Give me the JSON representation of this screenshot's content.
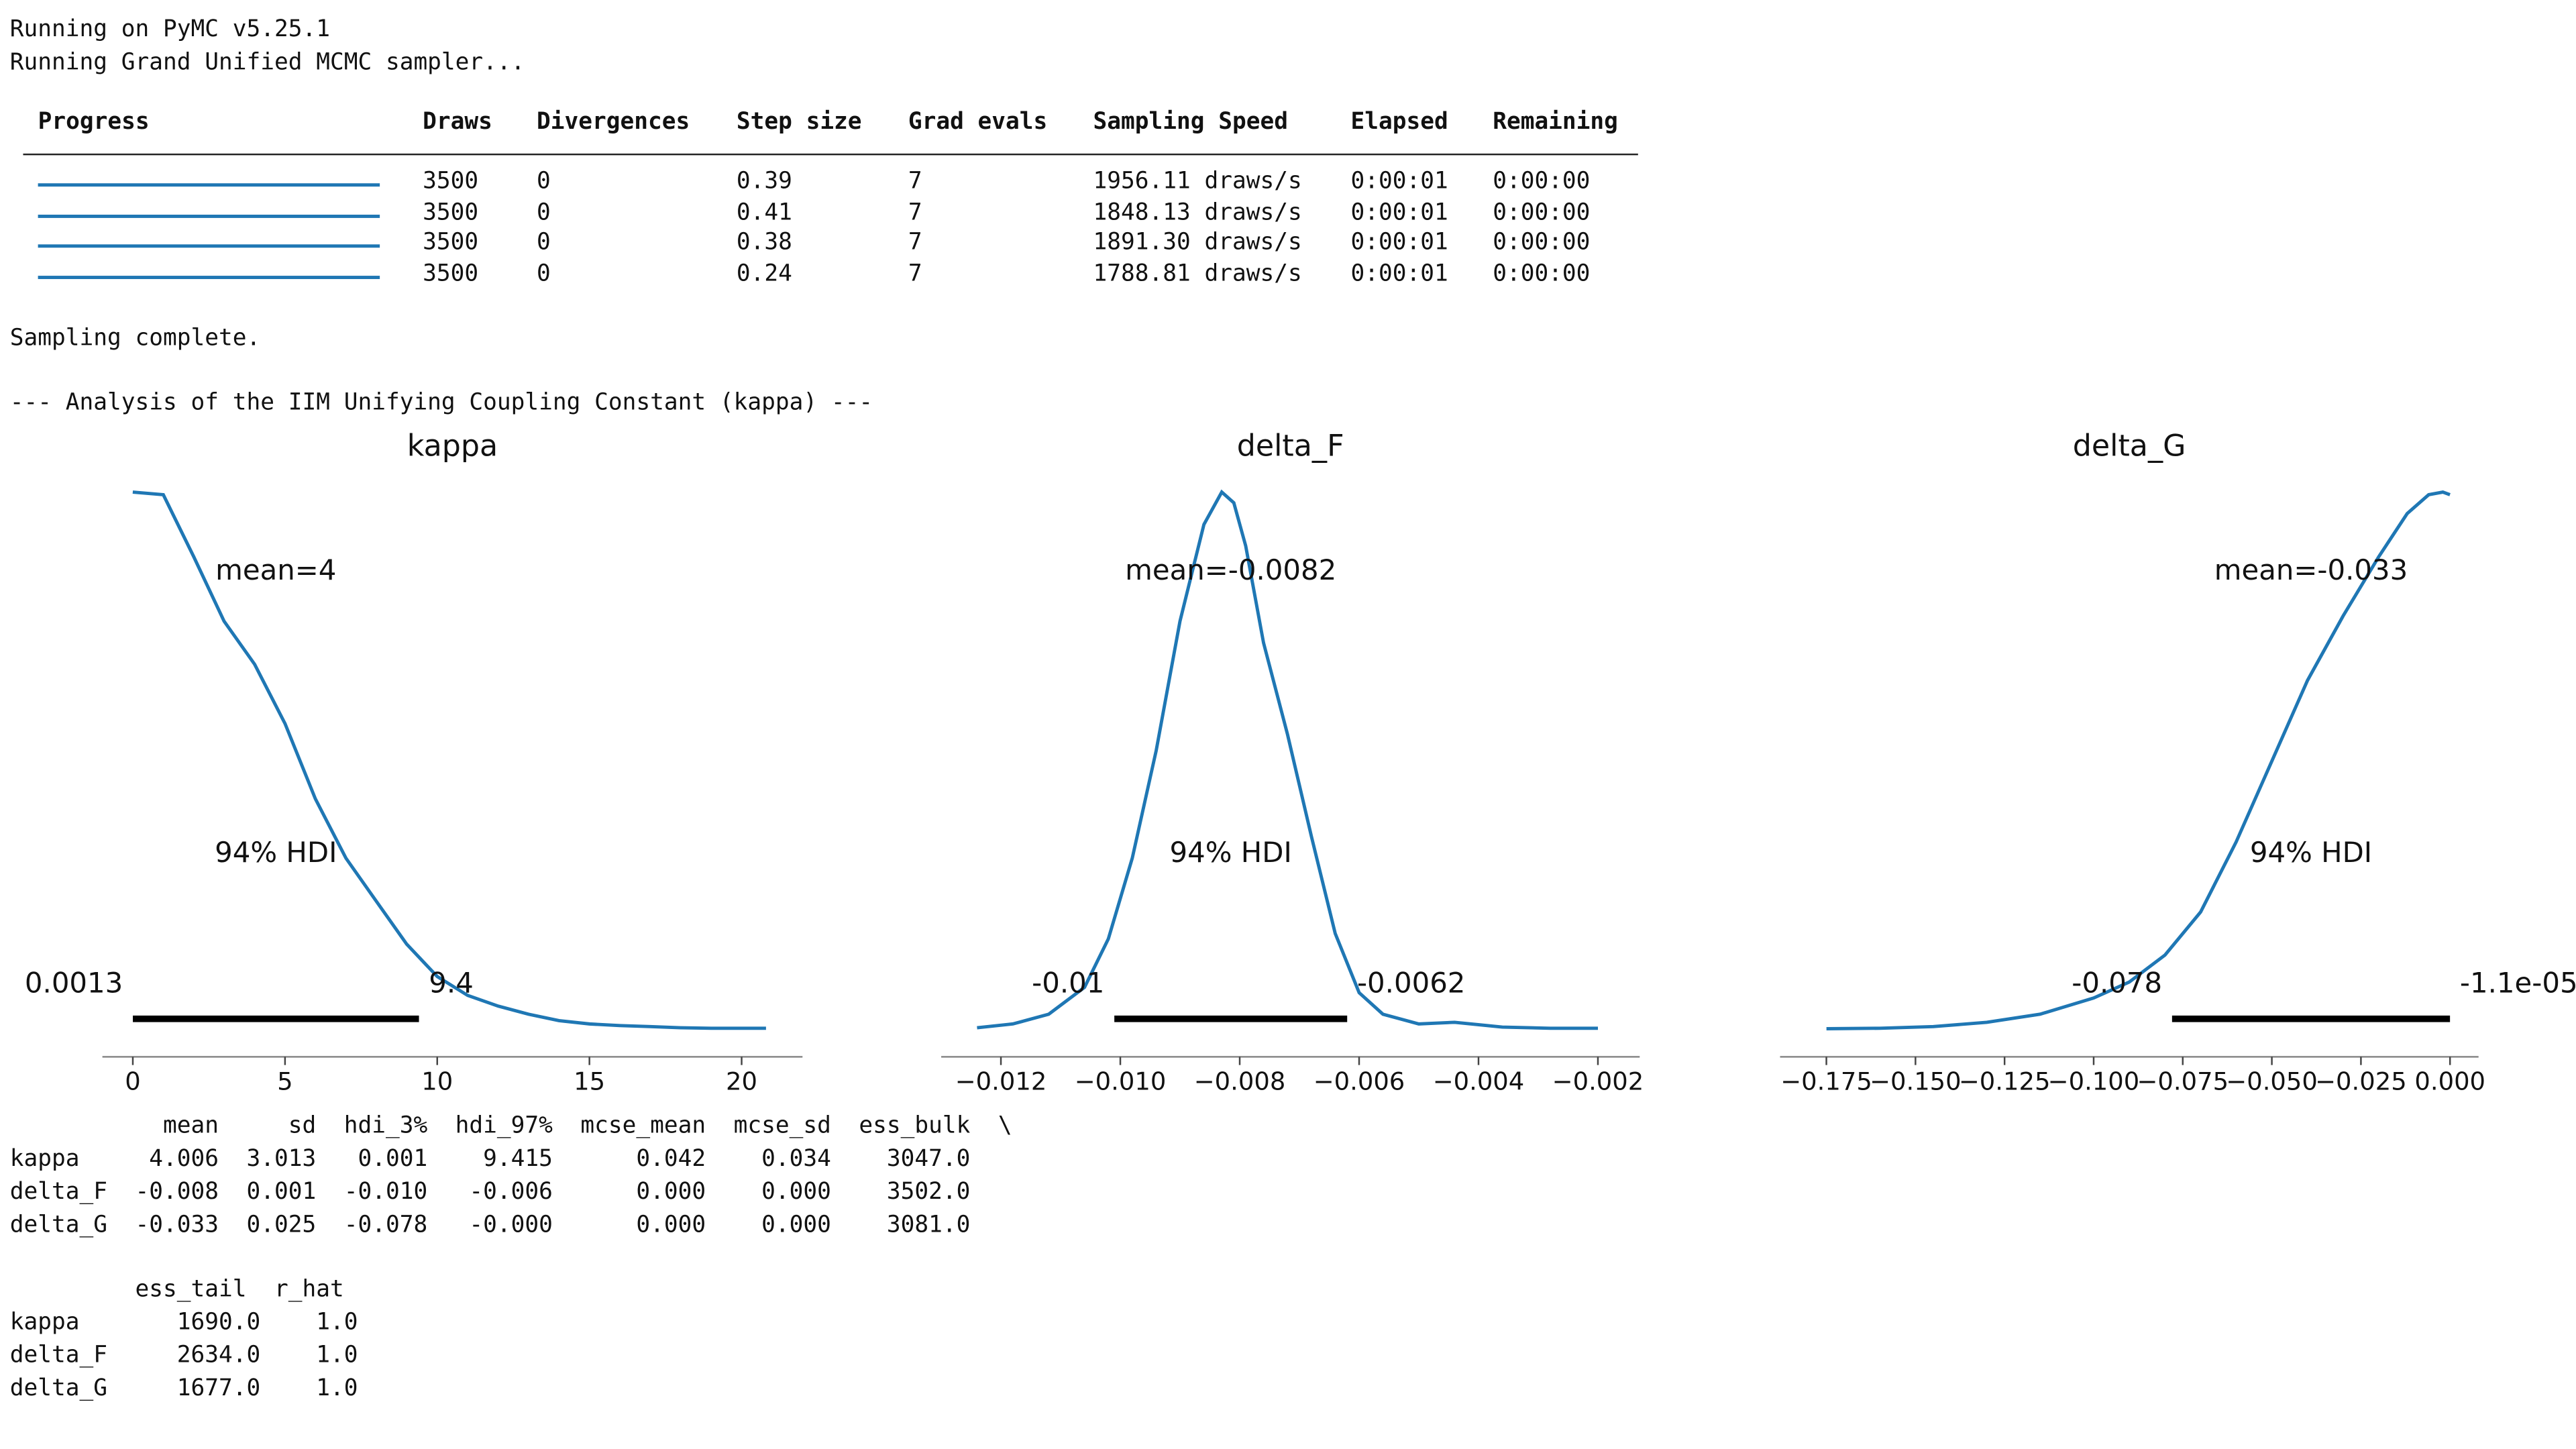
{
  "log": {
    "line1": "Running on PyMC v5.25.1",
    "line2": "Running Grand Unified MCMC sampler...",
    "complete": "Sampling complete.",
    "analysis": "--- Analysis of the IIM Unifying Coupling Constant (kappa) ---"
  },
  "progress_table": {
    "headers": [
      "Progress",
      "Draws",
      "Divergences",
      "Step size",
      "Grad evals",
      "Sampling Speed",
      "Elapsed",
      "Remaining"
    ],
    "rows": [
      {
        "progress": 1.0,
        "draws": "3500",
        "divergences": "0",
        "step_size": "0.39",
        "grad_evals": "7",
        "speed": "1956.11 draws/s",
        "elapsed": "0:00:01",
        "remaining": "0:00:00"
      },
      {
        "progress": 1.0,
        "draws": "3500",
        "divergences": "0",
        "step_size": "0.41",
        "grad_evals": "7",
        "speed": "1848.13 draws/s",
        "elapsed": "0:00:01",
        "remaining": "0:00:00"
      },
      {
        "progress": 1.0,
        "draws": "3500",
        "divergences": "0",
        "step_size": "0.38",
        "grad_evals": "7",
        "speed": "1891.30 draws/s",
        "elapsed": "0:00:01",
        "remaining": "0:00:00"
      },
      {
        "progress": 1.0,
        "draws": "3500",
        "divergences": "0",
        "step_size": "0.24",
        "grad_evals": "7",
        "speed": "1788.81 draws/s",
        "elapsed": "0:00:01",
        "remaining": "0:00:00"
      }
    ],
    "bar_color": "#1f77b4"
  },
  "chart_data": [
    {
      "type": "line",
      "title": "kappa",
      "mean_label": "mean=4",
      "hdi_label": "94% HDI",
      "hdi": [
        0.0013,
        9.4
      ],
      "hdi_low_label": "0.0013",
      "hdi_high_label": "9.4",
      "xlim": [
        -1,
        22
      ],
      "xticks": [
        0,
        5,
        10,
        15,
        20
      ],
      "xtick_labels": [
        "0",
        "5",
        "10",
        "15",
        "20"
      ],
      "x": [
        0,
        1,
        2,
        3,
        4,
        5,
        6,
        7,
        8,
        9,
        10,
        11,
        12,
        13,
        14,
        15,
        16,
        17,
        18,
        19,
        20,
        20.8
      ],
      "y": [
        1.0,
        0.995,
        0.88,
        0.76,
        0.68,
        0.57,
        0.43,
        0.32,
        0.24,
        0.16,
        0.1,
        0.065,
        0.045,
        0.03,
        0.018,
        0.012,
        0.009,
        0.007,
        0.005,
        0.004,
        0.004,
        0.004
      ],
      "color": "#1f77b4"
    },
    {
      "type": "line",
      "title": "delta_F",
      "mean_label": "mean=-0.0082",
      "hdi_label": "94% HDI",
      "hdi": [
        -0.0101,
        -0.0062
      ],
      "hdi_low_label": "-0.01",
      "hdi_high_label": "-0.0062",
      "xlim": [
        -0.013,
        -0.0013
      ],
      "xticks": [
        -0.012,
        -0.01,
        -0.008,
        -0.006,
        -0.004,
        -0.002
      ],
      "xtick_labels": [
        "−0.012",
        "−0.010",
        "−0.008",
        "−0.006",
        "−0.004",
        "−0.002"
      ],
      "x": [
        -0.0124,
        -0.0118,
        -0.0112,
        -0.0106,
        -0.0102,
        -0.0098,
        -0.0094,
        -0.009,
        -0.0086,
        -0.0083,
        -0.0081,
        -0.0079,
        -0.0076,
        -0.0072,
        -0.0068,
        -0.0064,
        -0.006,
        -0.0056,
        -0.005,
        -0.0044,
        -0.0036,
        -0.0028,
        -0.002
      ],
      "y": [
        0.005,
        0.012,
        0.03,
        0.08,
        0.17,
        0.32,
        0.52,
        0.76,
        0.94,
        1.0,
        0.98,
        0.9,
        0.72,
        0.55,
        0.36,
        0.18,
        0.07,
        0.03,
        0.012,
        0.015,
        0.006,
        0.004,
        0.004
      ],
      "color": "#1f77b4"
    },
    {
      "type": "line",
      "title": "delta_G",
      "mean_label": "mean=-0.033",
      "hdi_label": "94% HDI",
      "hdi": [
        -0.078,
        -1.1e-05
      ],
      "hdi_low_label": "-0.078",
      "hdi_high_label": "-1.1e-05",
      "xlim": [
        -0.188,
        0.008
      ],
      "xticks": [
        -0.175,
        -0.15,
        -0.125,
        -0.1,
        -0.075,
        -0.05,
        -0.025,
        0.0
      ],
      "xtick_labels": [
        "−0.175",
        "−0.150",
        "−0.125",
        "−0.100",
        "−0.075",
        "−0.050",
        "−0.025",
        "0.000"
      ],
      "x": [
        -0.175,
        -0.16,
        -0.145,
        -0.13,
        -0.115,
        -0.1,
        -0.09,
        -0.08,
        -0.07,
        -0.06,
        -0.05,
        -0.04,
        -0.03,
        -0.02,
        -0.012,
        -0.006,
        -0.002,
        0.0
      ],
      "y": [
        0.003,
        0.004,
        0.007,
        0.015,
        0.03,
        0.06,
        0.09,
        0.14,
        0.22,
        0.35,
        0.5,
        0.65,
        0.77,
        0.88,
        0.96,
        0.995,
        1.0,
        0.995
      ],
      "color": "#1f77b4"
    }
  ],
  "summary_table": {
    "part1_header": "           mean     sd  hdi_3%  hdi_97%  mcse_mean  mcse_sd  ess_bulk  \\",
    "part1_rows": [
      "kappa     4.006  3.013   0.001    9.415      0.042    0.034    3047.0",
      "delta_F  -0.008  0.001  -0.010   -0.006      0.000    0.000    3502.0",
      "delta_G  -0.033  0.025  -0.078   -0.000      0.000    0.000    3081.0"
    ],
    "part2_header": "         ess_tail  r_hat",
    "part2_rows": [
      "kappa       1690.0    1.0",
      "delta_F     2634.0    1.0",
      "delta_G     1677.0    1.0"
    ]
  }
}
